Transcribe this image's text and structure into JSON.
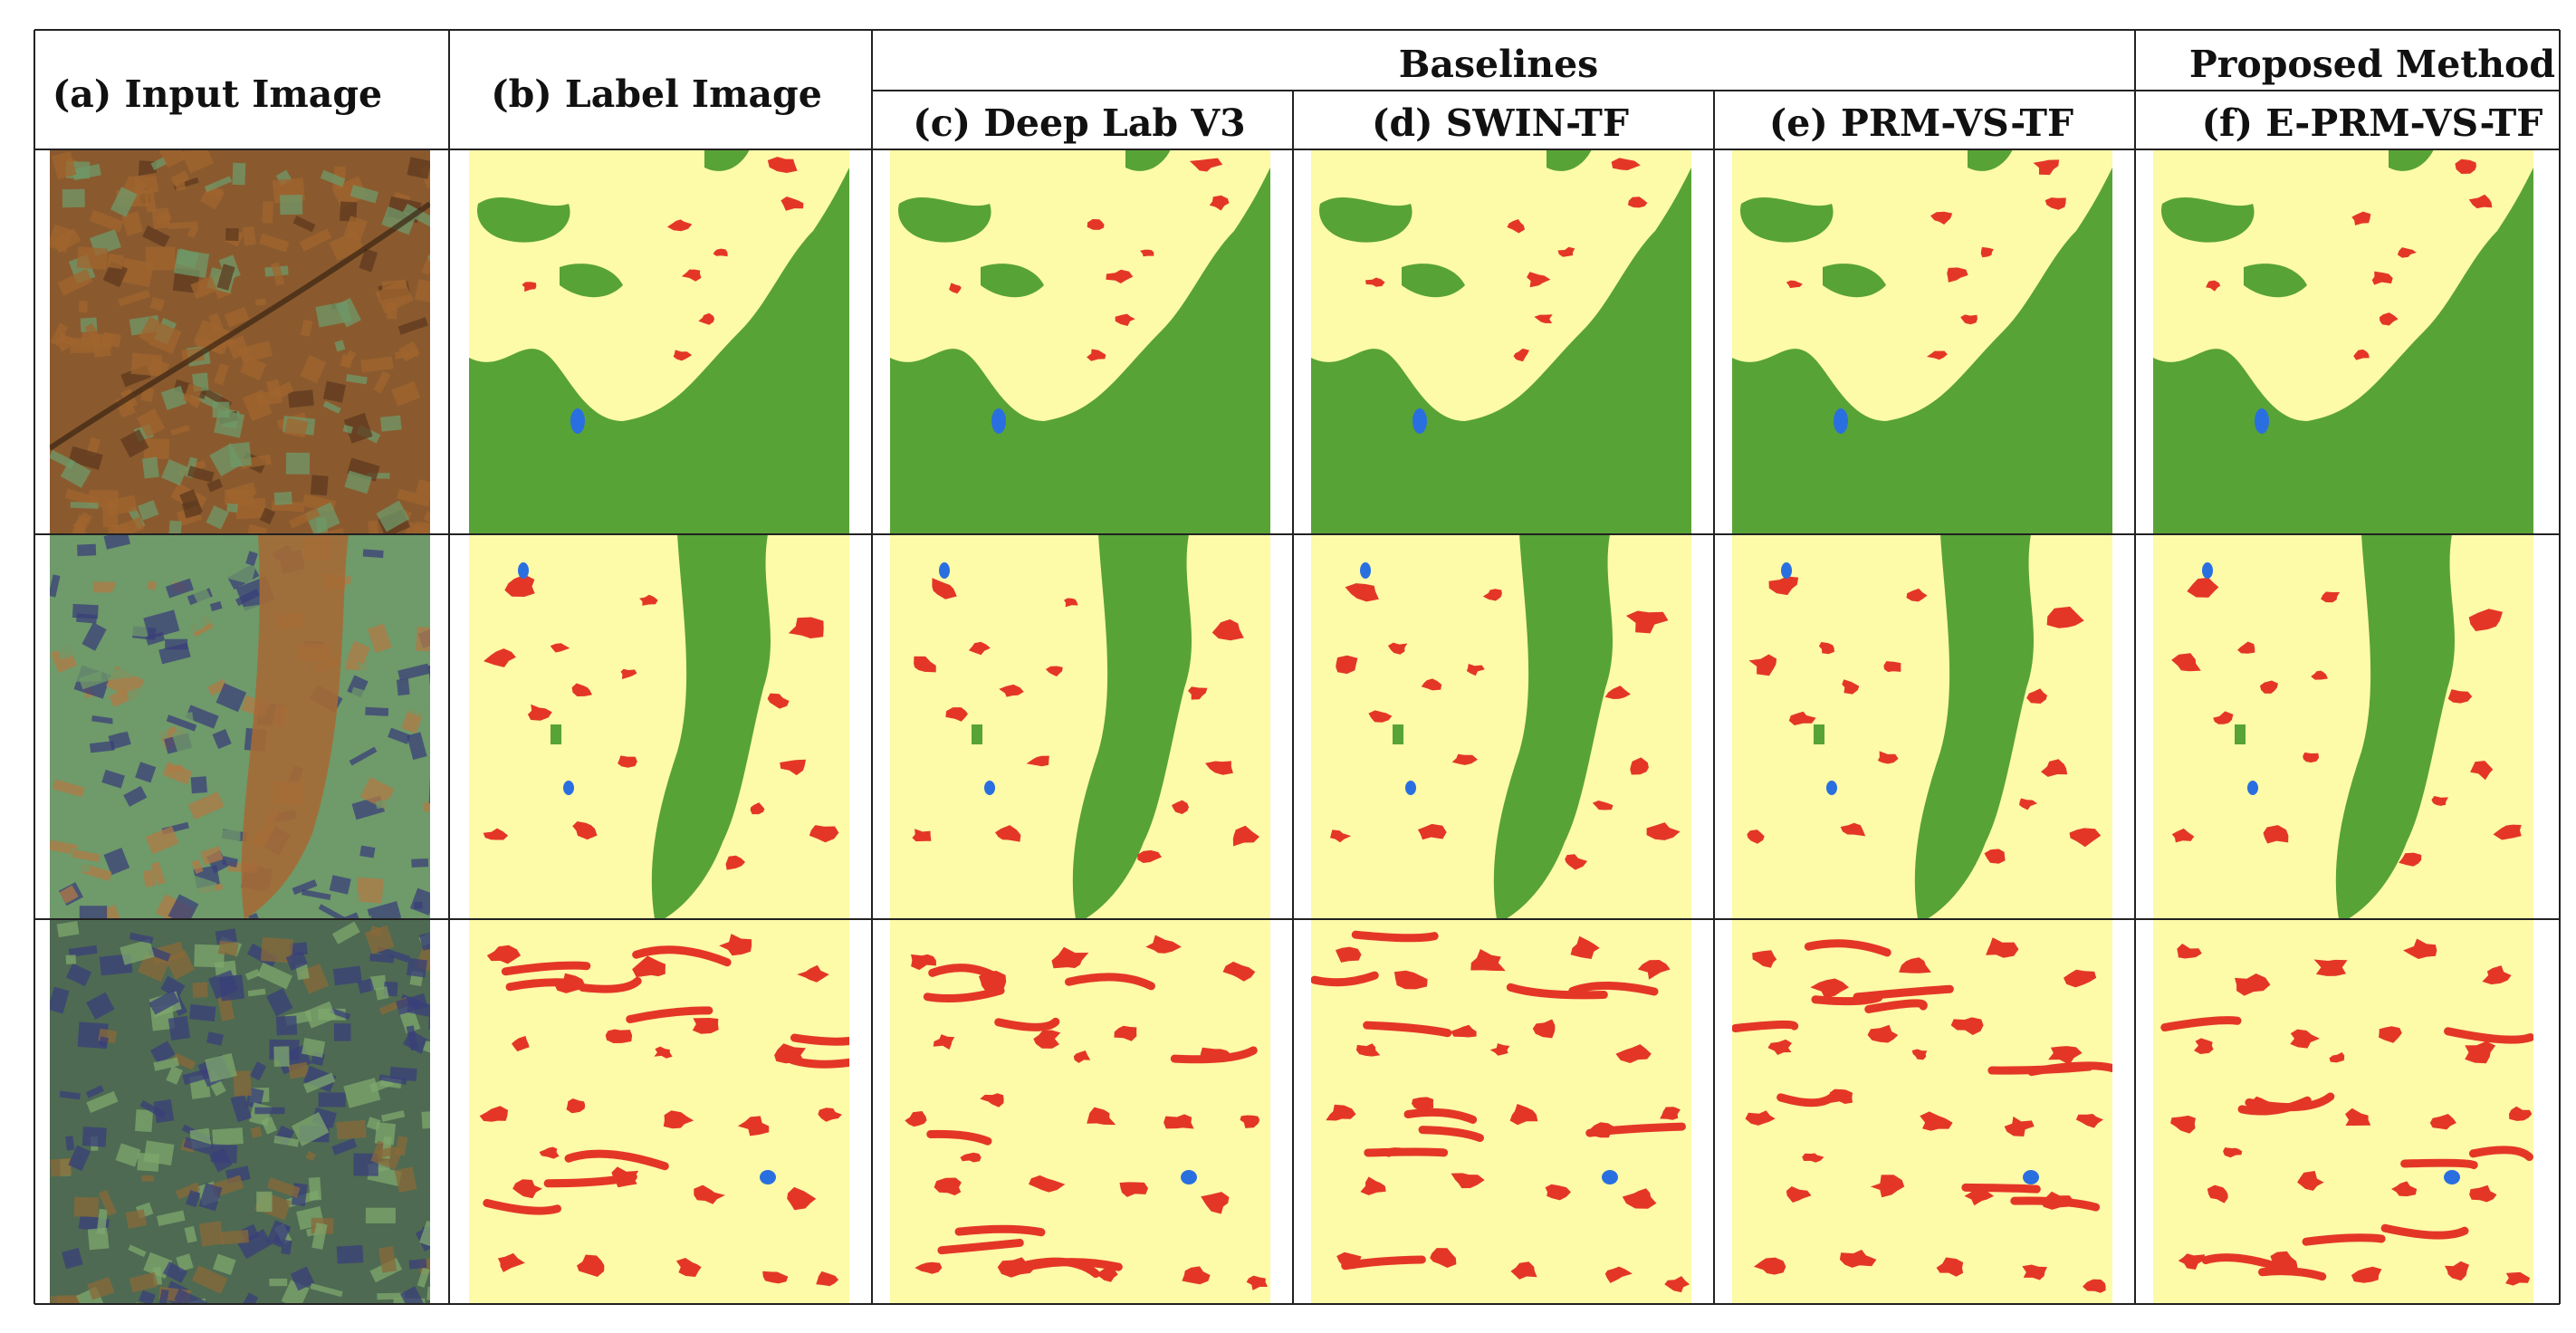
{
  "figure": {
    "headers": {
      "input": "(a)  Input Image",
      "label": "(b)  Label Image",
      "baselines_group": "Baselines",
      "proposed_group": "Proposed Method",
      "deeplab": "(c)  Deep Lab V3",
      "swin": "(d)  SWIN-TF",
      "prm": "(e)  PRM-VS-TF",
      "eprm": "(f)  E-PRM-VS-TF"
    },
    "columns": [
      "input",
      "label",
      "deeplab",
      "swin",
      "prm",
      "eprm"
    ],
    "rows": 3
  },
  "colors": {
    "background_class": "#fdfaa8",
    "vegetation_class": "#58a335",
    "red_class": "#e43627",
    "water_class": "#2a6fe0",
    "satellite_brown": "#8a5a2e",
    "satellite_green": "#6f9a6a",
    "satellite_blue": "#3a3f7a"
  }
}
